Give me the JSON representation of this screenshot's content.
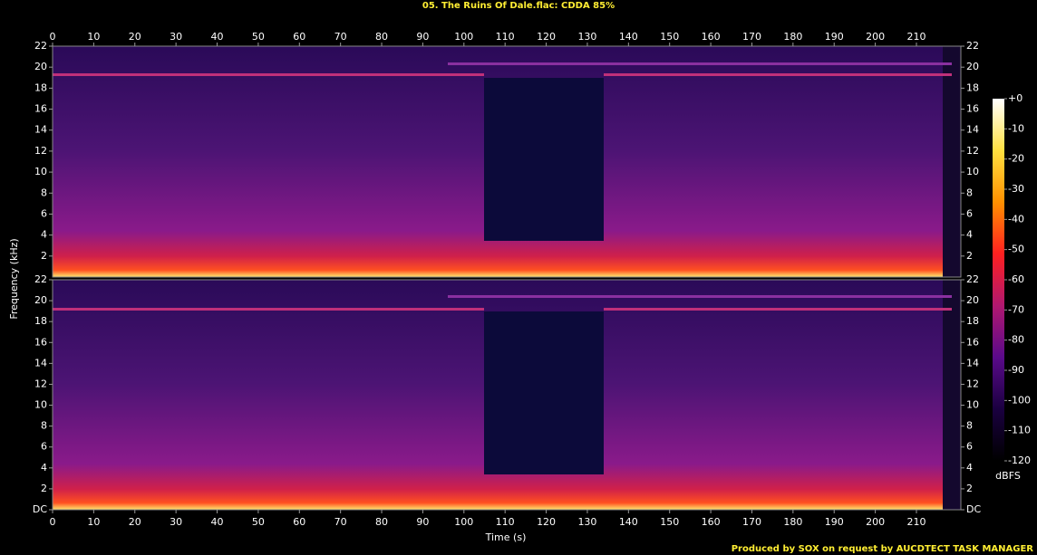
{
  "chart_data": {
    "type": "spectrogram",
    "title": "05. The Ruins Of Dale.flac: CDDA 85%",
    "x_label": "Time (s)",
    "y_label": "Frequency (kHz)",
    "xlim": [
      0,
      220.8
    ],
    "xticks": [
      0,
      10,
      20,
      30,
      40,
      50,
      60,
      70,
      80,
      90,
      100,
      110,
      120,
      130,
      140,
      150,
      160,
      170,
      180,
      190,
      200,
      210
    ],
    "channels": [
      {
        "ylim": [
          0,
          22
        ],
        "yticks": [
          2,
          4,
          6,
          8,
          10,
          12,
          14,
          16,
          18,
          20,
          22
        ]
      },
      {
        "ylim": [
          0,
          22
        ],
        "yticks": [
          {
            "value": 0,
            "label": "DC"
          },
          2,
          4,
          6,
          8,
          10,
          12,
          14,
          16,
          18,
          20,
          22
        ]
      }
    ],
    "colorbar": {
      "label": "dBFS",
      "lim": [
        -120,
        0
      ],
      "ticks": [
        {
          "value": 0,
          "label": "+0"
        },
        -10,
        -20,
        -30,
        -40,
        -50,
        -60,
        -70,
        -80,
        -90,
        -100,
        -110,
        -120
      ],
      "colors": [
        "#000000",
        "#1a0040",
        "#5a0a8a",
        "#b01870",
        "#ff2020",
        "#ff9000",
        "#ffe040",
        "#ffffff"
      ]
    },
    "footer": "Produced by SOX on request by AUCDTECT TASK MANAGER"
  }
}
